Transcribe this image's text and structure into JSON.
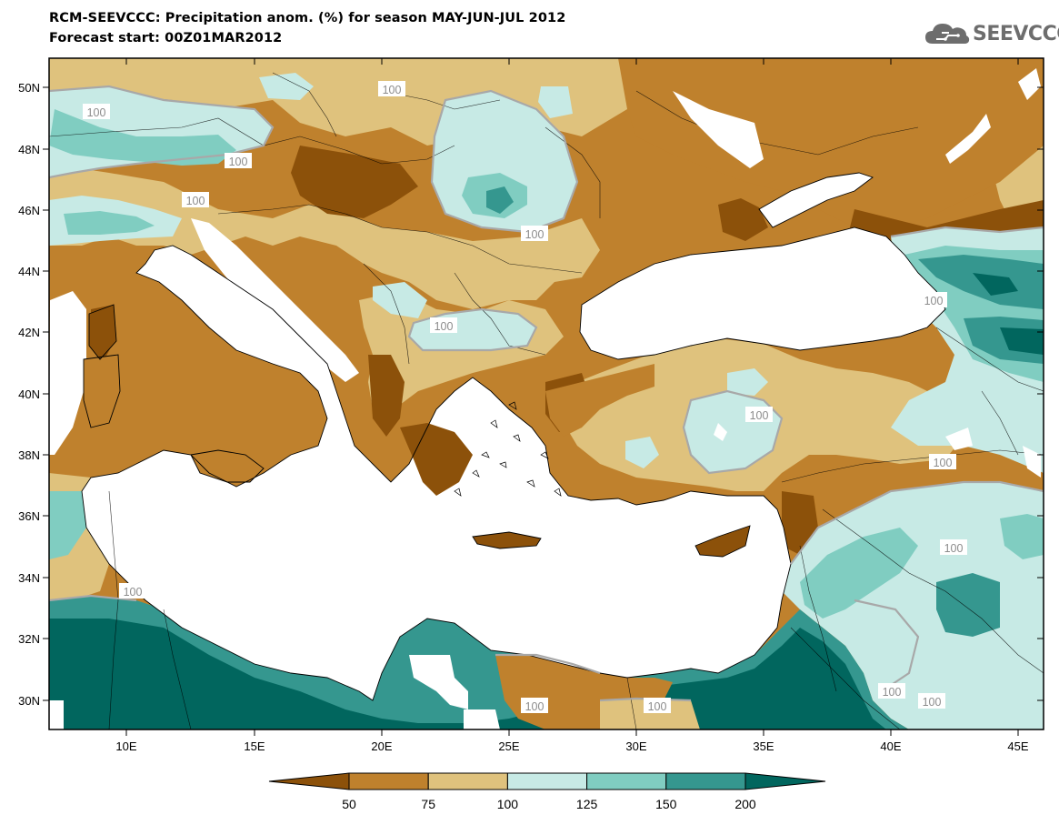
{
  "title_line1": "RCM-SEEVCCC: Precipitation anom. (%) for season MAY-JUN-JUL 2012",
  "title_line2": "Forecast start: 00Z01MAR2012",
  "logo": {
    "text": "SEEVCCC",
    "icon": "cloud-icon"
  },
  "lat_labels": [
    "50N",
    "48N",
    "46N",
    "44N",
    "42N",
    "40N",
    "38N",
    "36N",
    "34N",
    "32N",
    "30N"
  ],
  "lon_labels": [
    "10E",
    "15E",
    "20E",
    "25E",
    "30E",
    "35E",
    "40E",
    "45E"
  ],
  "contour_labels": [
    "100",
    "100",
    "100",
    "100",
    "100",
    "100",
    "100",
    "100",
    "100",
    "100",
    "100",
    "100",
    "100",
    "100",
    "100"
  ],
  "colorbar": {
    "levels": [
      "50",
      "75",
      "100",
      "125",
      "150",
      "200"
    ],
    "colors": [
      "#8c510a",
      "#bf812d",
      "#dfc27d",
      "#c7eae5",
      "#80cdc1",
      "#35978f",
      "#01665e"
    ]
  },
  "palette": {
    "land_dry": "#bf812d",
    "land_vdry": "#8c510a",
    "land_mid": "#dfc27d",
    "wet1": "#c7eae5",
    "wet2": "#80cdc1",
    "wet3": "#35978f",
    "wet4": "#01665e",
    "sea": "#ffffff"
  }
}
